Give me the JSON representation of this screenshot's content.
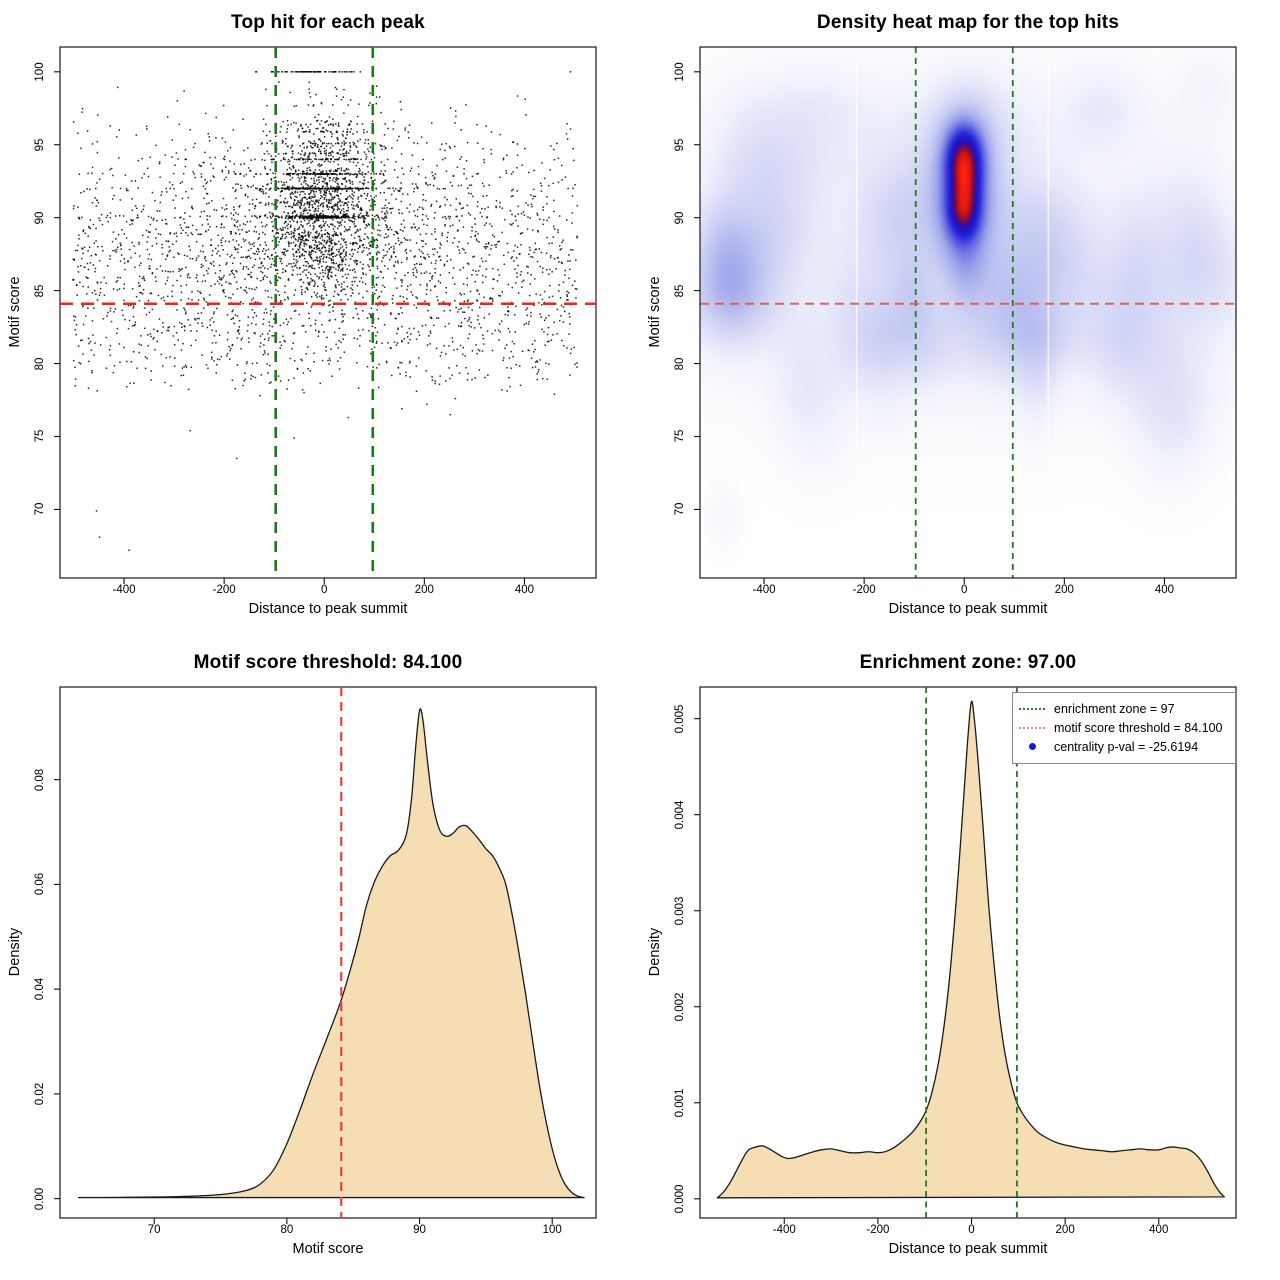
{
  "figure": {
    "background": "#ffffff",
    "frame_color": "#1a1a1a"
  },
  "chart_data": [
    {
      "type": "scatter",
      "title": "Top hit for each peak",
      "xlabel": "Distance to peak summit",
      "ylabel": "Motif score",
      "xlim": [
        -528,
        543
      ],
      "ylim": [
        65.3,
        101.7
      ],
      "xticks": [
        -400,
        -200,
        0,
        200,
        400
      ],
      "xtick_labels": [
        "-400",
        "-200",
        "0",
        "200",
        "400"
      ],
      "yticks": [
        70,
        75,
        80,
        85,
        90,
        95,
        100
      ],
      "ytick_labels": [
        "70",
        "75",
        "80",
        "85",
        "90",
        "95",
        "100"
      ],
      "grid": false,
      "point_color": "rgba(0,0,0,0.85)",
      "point_size": 1.5,
      "hline": {
        "y": 84.1,
        "color": "#e8251e",
        "dash": [
          13,
          8
        ],
        "width": 2.6,
        "meaning": "motif score threshold = 84.100"
      },
      "vlines": {
        "x": [
          -97,
          97
        ],
        "color": "#1c7a1c",
        "dash": [
          11,
          8
        ],
        "width": 2.6,
        "meaning": "enrichment zone = 97"
      },
      "generator": {
        "seed": 20240612,
        "bands": [
          100.0,
          98.8,
          97.7,
          96.4,
          96.1,
          95.9,
          95.1,
          94.9,
          94.4,
          94.0,
          93.0,
          92.0,
          90.1,
          90.0
        ],
        "band_snap_dist": 0.9,
        "groups": [
          {
            "n": 1500,
            "x": {
              "dist": "normal",
              "mean": -5,
              "sd": 48,
              "min": -165,
              "max": 165
            },
            "y": {
              "dist": "normal",
              "mean": 91.4,
              "sd": 2.7,
              "min": 84.2,
              "max": 100.1
            },
            "band_prob": 0.5
          },
          {
            "n": 850,
            "x": {
              "dist": "normal",
              "mean": -5,
              "sd": 150,
              "min": -420,
              "max": 420
            },
            "y": {
              "dist": "normal",
              "mean": 89.6,
              "sd": 3.6,
              "min": 80.5,
              "max": 99.4
            },
            "band_prob": 0.25
          },
          {
            "n": 2000,
            "x": {
              "dist": "uniform",
              "min": -502,
              "max": 506
            },
            "y": {
              "dist": "normal",
              "mean": 86.9,
              "sd": 4.7,
              "min": 78.3,
              "max": 99.2
            },
            "band_prob": 0.1
          },
          {
            "n": 120,
            "x": {
              "dist": "uniform",
              "min": -500,
              "max": 500
            },
            "y": {
              "dist": "uniform",
              "min": 78.0,
              "max": 83.0
            },
            "band_prob": 0
          },
          {
            "n": 70,
            "x": {
              "dist": "normal",
              "mean": -20,
              "sd": 60,
              "min": -140,
              "max": 80
            },
            "y": {
              "dist": "const",
              "value": 100.0
            },
            "band_prob": 0
          }
        ],
        "low_outliers": [
          [
            -455,
            69.9
          ],
          [
            -449,
            68.1
          ],
          [
            -390,
            67.2
          ],
          [
            -268,
            75.4
          ],
          [
            -175,
            73.5
          ],
          [
            -128,
            77.8
          ],
          [
            -60,
            74.9
          ],
          [
            48,
            76.3
          ],
          [
            155,
            76.9
          ],
          [
            205,
            77.2
          ],
          [
            252,
            76.5
          ],
          [
            262,
            77.6
          ],
          [
            355,
            78.2
          ],
          [
            460,
            77.9
          ],
          [
            492,
            100.0
          ]
        ]
      }
    },
    {
      "type": "heatmap",
      "title": "Density heat map for the top hits",
      "xlabel": "Distance to peak summit",
      "ylabel": "Motif score",
      "xlim": [
        -528,
        543
      ],
      "ylim": [
        65.3,
        101.7
      ],
      "xticks": [
        -400,
        -200,
        0,
        200,
        400
      ],
      "xtick_labels": [
        "-400",
        "-200",
        "0",
        "200",
        "400"
      ],
      "yticks": [
        70,
        75,
        80,
        85,
        90,
        95,
        100
      ],
      "ytick_labels": [
        "70",
        "75",
        "80",
        "85",
        "90",
        "95",
        "100"
      ],
      "hline": {
        "y": 84.1,
        "color": "#dd6159",
        "dash": [
          9,
          6
        ],
        "width": 2.0,
        "meaning": "motif score threshold = 84.100"
      },
      "vlines": {
        "x": [
          -97,
          97
        ],
        "color": "#217a21",
        "dash": [
          6,
          5
        ],
        "width": 1.8,
        "meaning": "enrichment zone = 97"
      },
      "hot_spots": [
        {
          "x": 0,
          "y": 94.5,
          "sx": 27,
          "sy": 1.55,
          "a": 1.05
        },
        {
          "x": 1,
          "y": 92.6,
          "sx": 24,
          "sy": 1.5,
          "a": 0.82
        },
        {
          "x": -1,
          "y": 90.3,
          "sx": 24,
          "sy": 1.3,
          "a": 0.96
        },
        {
          "x": 0,
          "y": 92.5,
          "sx": 42,
          "sy": 3.4,
          "a": 0.45
        },
        {
          "x": 0,
          "y": 88.3,
          "sx": 34,
          "sy": 2.0,
          "a": 0.3
        },
        {
          "x": 3,
          "y": 86.2,
          "sx": 26,
          "sy": 1.8,
          "a": 0.16
        }
      ],
      "base_wash": [
        {
          "x": 0,
          "y": 88,
          "sx": 380,
          "sy": 6.5,
          "a": 0.1
        },
        {
          "x": 0,
          "y": 83,
          "sx": 430,
          "sy": 4.5,
          "a": 0.05
        },
        {
          "x": -60,
          "y": 96.5,
          "sx": 300,
          "sy": 2.5,
          "a": 0.06
        },
        {
          "x": -480,
          "y": 69.5,
          "sx": 25,
          "sy": 1.5,
          "a": 0.045
        },
        {
          "x": -150,
          "y": 76.5,
          "sx": 30,
          "sy": 1.2,
          "a": 0.035
        }
      ],
      "background_blob_gen": {
        "seed": 771,
        "n": 55,
        "x_min": -515,
        "x_max": 515,
        "y_mean": 87.5,
        "y_sd": 5.2,
        "y_min": 69,
        "y_max": 99.3,
        "sx_min": 28,
        "sx_max": 75,
        "sy_min": 1.6,
        "sy_max": 3.4,
        "amp_min": 0.04,
        "amp_max": 0.13
      },
      "white_seams": {
        "x": [
          -215,
          168
        ],
        "color": "rgba(255,255,255,0.75)",
        "width": 1.6
      },
      "colormap": [
        {
          "t": 0.0,
          "c": "#ffffff"
        },
        {
          "t": 0.04,
          "c": "#f4f5fc"
        },
        {
          "t": 0.1,
          "c": "#dfe2f8"
        },
        {
          "t": 0.2,
          "c": "#c3c8f2"
        },
        {
          "t": 0.33,
          "c": "#9aa0ea"
        },
        {
          "t": 0.47,
          "c": "#5d63e0"
        },
        {
          "t": 0.6,
          "c": "#2726dc"
        },
        {
          "t": 0.7,
          "c": "#1a14c8"
        },
        {
          "t": 0.78,
          "c": "#3c0a96"
        },
        {
          "t": 0.85,
          "c": "#8c0a32"
        },
        {
          "t": 0.91,
          "c": "#cc1410"
        },
        {
          "t": 1.0,
          "c": "#ff2014"
        }
      ]
    },
    {
      "type": "area",
      "title": "Motif score threshold: 84.100",
      "xlabel": "Motif score",
      "ylabel": "Density",
      "xlim": [
        62.9,
        103.3
      ],
      "ylim": [
        -0.0037,
        0.0977
      ],
      "xticks": [
        70,
        80,
        90,
        100
      ],
      "xtick_labels": [
        "70",
        "80",
        "90",
        "100"
      ],
      "yticks": [
        0.0,
        0.02,
        0.04,
        0.06,
        0.08
      ],
      "ytick_labels": [
        "0.00",
        "0.02",
        "0.04",
        "0.06",
        "0.08"
      ],
      "fill": "#f5deb3",
      "stroke": "#1a1a1a",
      "vlines": {
        "x": [
          84.1
        ],
        "color": "#e2443a",
        "dash": [
          9,
          6
        ],
        "width": 2.2,
        "meaning": "motif score threshold = 84.100"
      },
      "curve": [
        [
          64.3,
          0.0002
        ],
        [
          66,
          0.00022
        ],
        [
          68,
          0.00025
        ],
        [
          70,
          0.0003
        ],
        [
          72,
          0.0004
        ],
        [
          74,
          0.0006
        ],
        [
          75.5,
          0.0009
        ],
        [
          77,
          0.0016
        ],
        [
          78,
          0.0028
        ],
        [
          79,
          0.0055
        ],
        [
          80,
          0.0105
        ],
        [
          81,
          0.017
        ],
        [
          82,
          0.024
        ],
        [
          83,
          0.0305
        ],
        [
          84,
          0.0372
        ],
        [
          84.7,
          0.043
        ],
        [
          85.4,
          0.0495
        ],
        [
          86,
          0.056
        ],
        [
          86.6,
          0.0605
        ],
        [
          87.2,
          0.0635
        ],
        [
          87.8,
          0.0655
        ],
        [
          88.4,
          0.0665
        ],
        [
          89,
          0.0695
        ],
        [
          89.4,
          0.0765
        ],
        [
          89.7,
          0.086
        ],
        [
          90,
          0.0932
        ],
        [
          90.25,
          0.0915
        ],
        [
          90.6,
          0.0835
        ],
        [
          91,
          0.0755
        ],
        [
          91.5,
          0.0705
        ],
        [
          92,
          0.0692
        ],
        [
          92.5,
          0.0697
        ],
        [
          93,
          0.071
        ],
        [
          93.5,
          0.0712
        ],
        [
          94,
          0.07
        ],
        [
          94.5,
          0.0685
        ],
        [
          95,
          0.0668
        ],
        [
          95.5,
          0.0655
        ],
        [
          96,
          0.0632
        ],
        [
          96.5,
          0.06
        ],
        [
          97,
          0.054
        ],
        [
          97.5,
          0.0468
        ],
        [
          98,
          0.039
        ],
        [
          98.5,
          0.0305
        ],
        [
          99,
          0.0222
        ],
        [
          99.5,
          0.0152
        ],
        [
          100,
          0.0095
        ],
        [
          100.5,
          0.0053
        ],
        [
          101,
          0.0026
        ],
        [
          101.5,
          0.0011
        ],
        [
          102,
          0.0004
        ],
        [
          102.4,
          0.0002
        ]
      ]
    },
    {
      "type": "area",
      "title": "Enrichment zone: 97.00",
      "xlabel": "Distance to peak summit",
      "ylabel": "Density",
      "xlim": [
        -580,
        565
      ],
      "ylim": [
        -0.0002,
        0.00533
      ],
      "xticks": [
        -400,
        -200,
        0,
        200,
        400
      ],
      "xtick_labels": [
        "-400",
        "-200",
        "0",
        "200",
        "400"
      ],
      "yticks": [
        0.0,
        0.001,
        0.002,
        0.003,
        0.004,
        0.005
      ],
      "ytick_labels": [
        "0.000",
        "0.001",
        "0.002",
        "0.003",
        "0.004",
        "0.005"
      ],
      "fill": "#f5deb3",
      "stroke": "#1a1a1a",
      "vlines": {
        "x": [
          -97,
          97
        ],
        "color": "#1f7a1f",
        "dash": [
          6,
          4.5
        ],
        "width": 1.8,
        "meaning": "enrichment zone = 97"
      },
      "curve": [
        [
          -543,
          1e-05
        ],
        [
          -528,
          8e-05
        ],
        [
          -512,
          0.0002
        ],
        [
          -496,
          0.00035
        ],
        [
          -478,
          0.0005
        ],
        [
          -460,
          0.00054
        ],
        [
          -445,
          0.00055
        ],
        [
          -425,
          0.0005
        ],
        [
          -405,
          0.00044
        ],
        [
          -390,
          0.00042
        ],
        [
          -370,
          0.00044
        ],
        [
          -345,
          0.00048
        ],
        [
          -320,
          0.00051
        ],
        [
          -300,
          0.00052
        ],
        [
          -280,
          0.0005
        ],
        [
          -260,
          0.00048
        ],
        [
          -240,
          0.00048
        ],
        [
          -220,
          0.00049
        ],
        [
          -200,
          0.00048
        ],
        [
          -185,
          0.00049
        ],
        [
          -170,
          0.00052
        ],
        [
          -155,
          0.00057
        ],
        [
          -140,
          0.00063
        ],
        [
          -125,
          0.0007
        ],
        [
          -110,
          0.0008
        ],
        [
          -97,
          0.00092
        ],
        [
          -85,
          0.0011
        ],
        [
          -72,
          0.00138
        ],
        [
          -60,
          0.00175
        ],
        [
          -48,
          0.00225
        ],
        [
          -36,
          0.0029
        ],
        [
          -25,
          0.0036
        ],
        [
          -15,
          0.0043
        ],
        [
          -7,
          0.00485
        ],
        [
          0,
          0.00518
        ],
        [
          7,
          0.00495
        ],
        [
          15,
          0.0045
        ],
        [
          25,
          0.00385
        ],
        [
          36,
          0.0031
        ],
        [
          48,
          0.00245
        ],
        [
          60,
          0.0019
        ],
        [
          72,
          0.0015
        ],
        [
          85,
          0.0012
        ],
        [
          97,
          0.001
        ],
        [
          110,
          0.00088
        ],
        [
          125,
          0.00078
        ],
        [
          140,
          0.0007
        ],
        [
          155,
          0.00065
        ],
        [
          170,
          0.00061
        ],
        [
          185,
          0.00058
        ],
        [
          200,
          0.00056
        ],
        [
          220,
          0.00054
        ],
        [
          240,
          0.00052
        ],
        [
          260,
          0.00051
        ],
        [
          280,
          0.0005
        ],
        [
          300,
          0.00049
        ],
        [
          320,
          0.0005
        ],
        [
          340,
          0.00051
        ],
        [
          360,
          0.00052
        ],
        [
          380,
          0.00051
        ],
        [
          400,
          0.00051
        ],
        [
          415,
          0.00053
        ],
        [
          430,
          0.00054
        ],
        [
          445,
          0.00053
        ],
        [
          460,
          0.00052
        ],
        [
          475,
          0.00048
        ],
        [
          490,
          0.0004
        ],
        [
          505,
          0.00028
        ],
        [
          518,
          0.00016
        ],
        [
          530,
          7e-05
        ],
        [
          540,
          2e-05
        ]
      ],
      "legend": {
        "border_color": "#898989",
        "items": [
          {
            "swatch": "dotted-line",
            "color": "#2a7d2a",
            "label": "enrichment zone = 97"
          },
          {
            "swatch": "dotted-line",
            "color": "#ef837b",
            "label": "motif score threshold = 84.100"
          },
          {
            "swatch": "dot",
            "color": "#1616e0",
            "label": "centrality p-val = -25.6194"
          }
        ]
      }
    }
  ]
}
